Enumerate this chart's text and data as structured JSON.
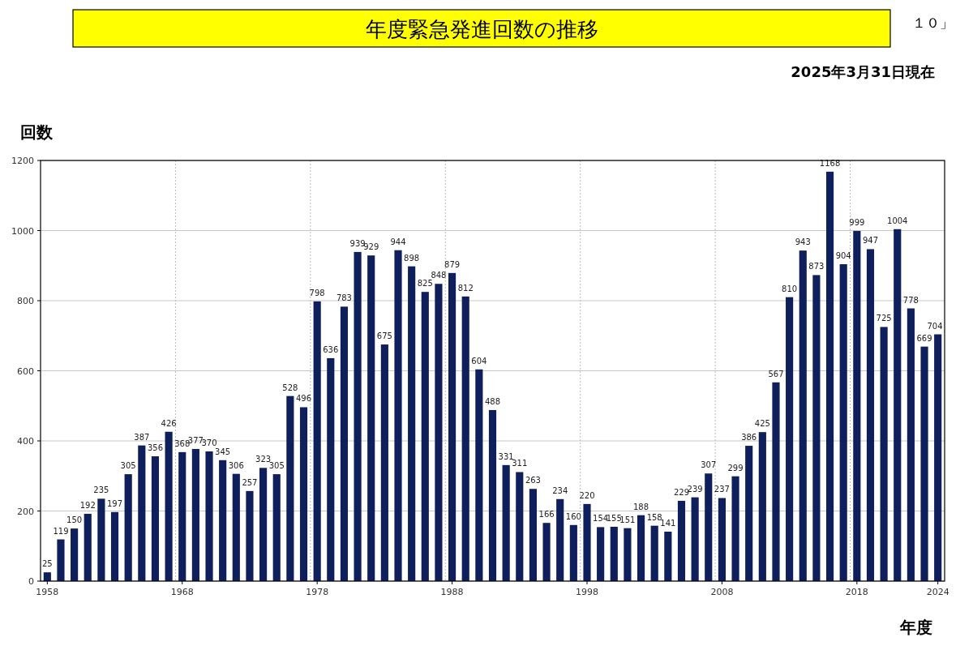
{
  "chart_data": {
    "type": "bar",
    "title": "年度緊急発進回数の推移",
    "subtitle": "2025年3月31日現在",
    "annotations": [
      "１０」"
    ],
    "ylabel": "回数",
    "xlabel": "年度",
    "categories": [
      "1958",
      null,
      null,
      null,
      null,
      null,
      null,
      null,
      null,
      null,
      "1968",
      null,
      null,
      null,
      null,
      null,
      null,
      null,
      null,
      null,
      "1978",
      null,
      null,
      null,
      null,
      null,
      null,
      null,
      null,
      null,
      "1988",
      null,
      null,
      null,
      null,
      null,
      null,
      null,
      null,
      null,
      "1998",
      null,
      null,
      null,
      null,
      null,
      null,
      null,
      null,
      null,
      "2008",
      null,
      null,
      null,
      null,
      null,
      null,
      null,
      null,
      null,
      "2018",
      null,
      null,
      null,
      null,
      null,
      "2024"
    ],
    "values": [
      25,
      119,
      150,
      192,
      235,
      197,
      305,
      387,
      356,
      426,
      368,
      377,
      370,
      345,
      306,
      257,
      323,
      305,
      528,
      496,
      798,
      636,
      783,
      939,
      929,
      675,
      944,
      898,
      825,
      848,
      879,
      812,
      604,
      488,
      331,
      311,
      263,
      166,
      234,
      160,
      220,
      154,
      155,
      151,
      188,
      158,
      141,
      229,
      239,
      307,
      237,
      299,
      386,
      425,
      567,
      810,
      943,
      873,
      1168,
      904,
      999,
      947,
      725,
      1004,
      778,
      669,
      704
    ],
    "color": "#0e1f5b",
    "ylim": [
      0,
      1200
    ],
    "yticks": [
      0,
      200,
      400,
      600,
      800,
      1000,
      1200
    ],
    "grid": true,
    "data_labels": true
  }
}
